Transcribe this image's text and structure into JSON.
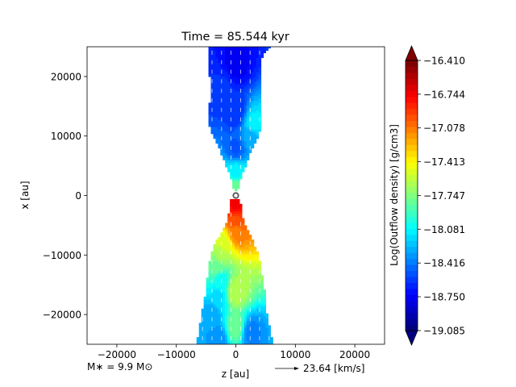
{
  "chart_data": {
    "type": "heatmap",
    "title": "Time = 85.544 kyr",
    "xlabel": "z [au]",
    "ylabel": "x [au]",
    "xlim": [
      -25000,
      25000
    ],
    "ylim": [
      -25000,
      25000
    ],
    "x_ticks": [
      {
        "value": -20000,
        "label": "−20000"
      },
      {
        "value": -10000,
        "label": "−10000"
      },
      {
        "value": 0,
        "label": "0"
      },
      {
        "value": 10000,
        "label": "10000"
      },
      {
        "value": 20000,
        "label": "20000"
      }
    ],
    "y_ticks": [
      {
        "value": 20000,
        "label": "20000"
      },
      {
        "value": 10000,
        "label": "10000"
      },
      {
        "value": 0,
        "label": "0"
      },
      {
        "value": -10000,
        "label": "−10000"
      },
      {
        "value": -20000,
        "label": "−20000"
      }
    ],
    "colorbar": {
      "label": "Log(Outflow density) [g/cm3]",
      "colormap": "jet",
      "range": [
        -19.085,
        -16.41
      ],
      "extend": "both",
      "levels": 45,
      "ticks": [
        {
          "value": -16.41,
          "label": "−16.410"
        },
        {
          "value": -16.744,
          "label": "−16.744"
        },
        {
          "value": -17.078,
          "label": "−17.078"
        },
        {
          "value": -17.413,
          "label": "−17.413"
        },
        {
          "value": -17.747,
          "label": "−17.747"
        },
        {
          "value": -18.081,
          "label": "−18.081"
        },
        {
          "value": -18.416,
          "label": "−18.416"
        },
        {
          "value": -18.75,
          "label": "−18.750"
        },
        {
          "value": -19.085,
          "label": "−19.085"
        }
      ]
    },
    "outflow_region": {
      "upper_lobe": {
        "profile": [
          [
            25000,
            -4400,
            5600
          ],
          [
            23000,
            -4500,
            4200
          ],
          [
            20000,
            -4400,
            4200
          ],
          [
            16000,
            -4300,
            4200
          ],
          [
            14000,
            -4800,
            4300
          ],
          [
            12000,
            -4600,
            4400
          ],
          [
            10000,
            -3800,
            3800
          ],
          [
            8000,
            -2800,
            2700
          ],
          [
            6000,
            -2000,
            2000
          ],
          [
            4000,
            -1200,
            1200
          ],
          [
            2000,
            -600,
            600
          ],
          [
            800,
            -300,
            300
          ]
        ],
        "density_samples": [
          [
            22000,
            0,
            -18.75
          ],
          [
            18000,
            -2000,
            -18.6
          ],
          [
            14000,
            0,
            -18.6
          ],
          [
            12000,
            3000,
            -18.1
          ],
          [
            10000,
            2500,
            -18.3
          ],
          [
            8000,
            0,
            -18.5
          ],
          [
            4000,
            0,
            -18.1
          ],
          [
            1500,
            0,
            -17.8
          ]
        ]
      },
      "lower_lobe": {
        "profile": [
          [
            -800,
            -800,
            700
          ],
          [
            -4000,
            -1400,
            1200
          ],
          [
            -6000,
            -2200,
            2000
          ],
          [
            -8000,
            -3500,
            3000
          ],
          [
            -10000,
            -4200,
            3800
          ],
          [
            -12000,
            -4600,
            4200
          ],
          [
            -16000,
            -5000,
            4800
          ],
          [
            -20000,
            -5800,
            5200
          ],
          [
            -23000,
            -6200,
            5800
          ],
          [
            -25000,
            -6800,
            6200
          ]
        ],
        "density_samples": [
          [
            -1500,
            0,
            -16.75
          ],
          [
            -4000,
            0,
            -16.95
          ],
          [
            -6000,
            0,
            -17.1
          ],
          [
            -8000,
            -2000,
            -17.5
          ],
          [
            -10000,
            -2500,
            -17.65
          ],
          [
            -12000,
            -3000,
            -17.8
          ],
          [
            -14000,
            -2500,
            -18.05
          ],
          [
            -17000,
            -3000,
            -18.15
          ],
          [
            -20000,
            -4000,
            -18.3
          ],
          [
            -23000,
            2500,
            -18.4
          ],
          [
            -24000,
            -3000,
            -18.35
          ],
          [
            -16000,
            0,
            -17.6
          ],
          [
            -22000,
            0,
            -17.8
          ]
        ]
      }
    },
    "sink": {
      "x": 0,
      "z": 0
    },
    "annotations": {
      "mass_label": "M∗ = 9.9 M⊙",
      "velocity_key_label": "23.64 [km/s]"
    }
  }
}
